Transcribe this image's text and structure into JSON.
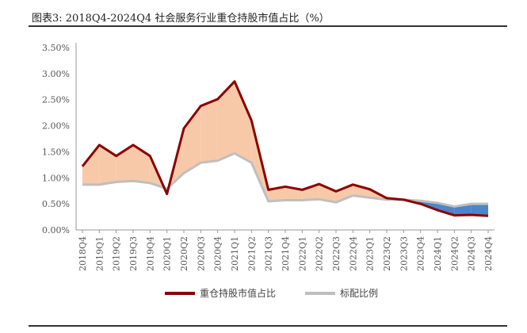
{
  "header": {
    "title": "图表3:  2018Q4-2024Q4 社会服务行业重仓持股市值占比（%）"
  },
  "chart_data": {
    "type": "line",
    "categories": [
      "2018Q4",
      "2019Q1",
      "2019Q2",
      "2019Q3",
      "2019Q4",
      "2020Q1",
      "2020Q2",
      "2020Q3",
      "2020Q4",
      "2021Q1",
      "2021Q2",
      "2021Q3",
      "2021Q4",
      "2022Q1",
      "2022Q2",
      "2022Q3",
      "2022Q4",
      "2023Q1",
      "2023Q2",
      "2023Q3",
      "2023Q4",
      "2024Q1",
      "2024Q2",
      "2024Q3",
      "2024Q4"
    ],
    "series": [
      {
        "name": "重仓持股市值占比",
        "color": "#8b0000",
        "values": [
          1.22,
          1.63,
          1.42,
          1.63,
          1.42,
          0.69,
          1.95,
          2.38,
          2.51,
          2.85,
          2.1,
          0.77,
          0.83,
          0.77,
          0.88,
          0.74,
          0.87,
          0.78,
          0.61,
          0.58,
          0.5,
          0.38,
          0.28,
          0.29,
          0.27
        ]
      },
      {
        "name": "标配比例",
        "color": "#bfbfbf",
        "values": [
          0.87,
          0.87,
          0.92,
          0.94,
          0.9,
          0.79,
          1.09,
          1.29,
          1.33,
          1.47,
          1.29,
          0.55,
          0.57,
          0.57,
          0.59,
          0.53,
          0.66,
          0.62,
          0.58,
          0.58,
          0.56,
          0.52,
          0.45,
          0.5,
          0.5
        ]
      }
    ],
    "fill_above_color": "#f7c9a9",
    "fill_below_color": "#4a86c8",
    "ylim": [
      0,
      3.5
    ],
    "yticks": [
      "0.00%",
      "0.50%",
      "1.00%",
      "1.50%",
      "2.00%",
      "2.50%",
      "3.00%",
      "3.50%"
    ],
    "grid": false,
    "legend_position": "bottom"
  }
}
